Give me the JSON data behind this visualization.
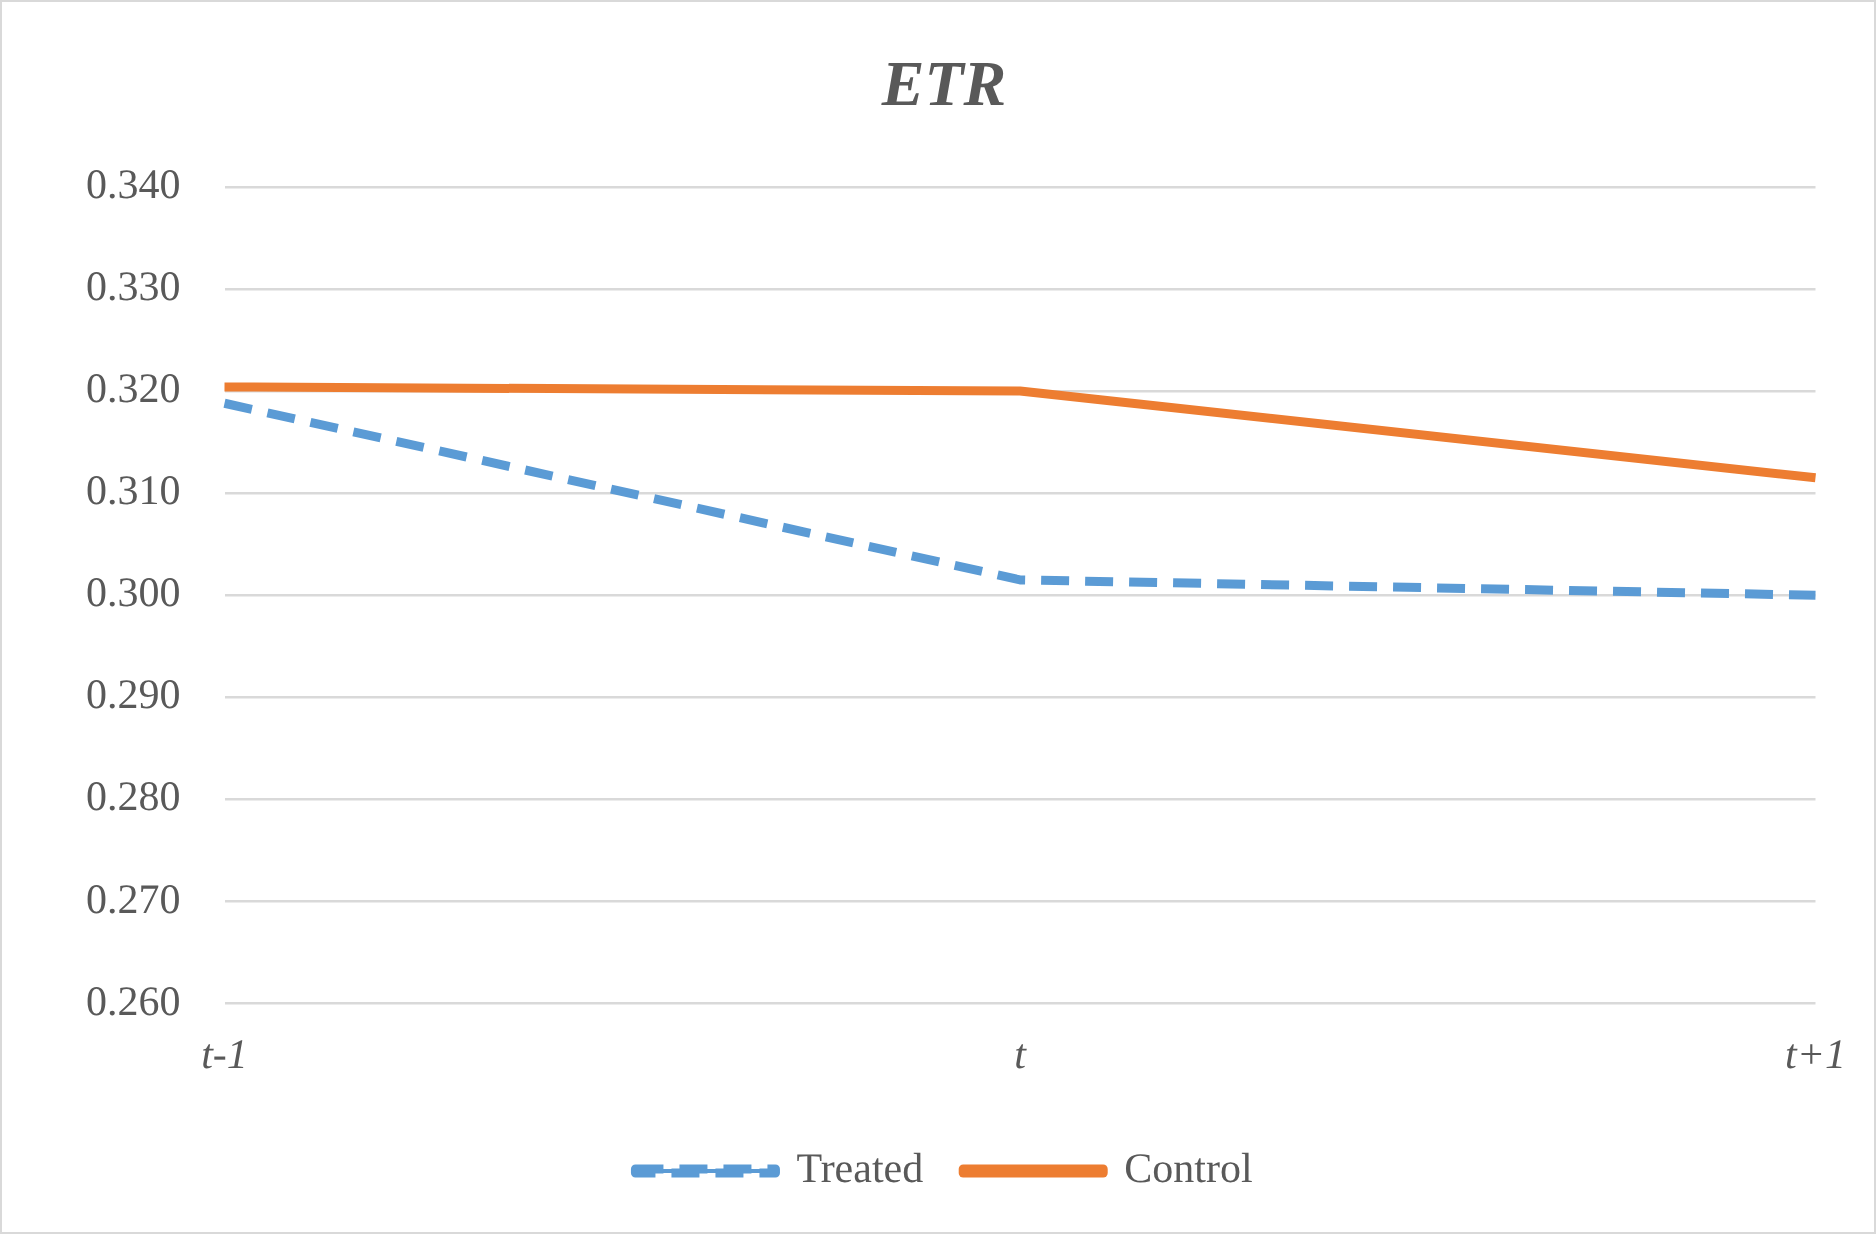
{
  "chart_data": {
    "type": "line",
    "title": "ETR",
    "categories": [
      "t-1",
      "t",
      "t+1"
    ],
    "series": [
      {
        "name": "Treated",
        "color": "#5b9bd5",
        "line_style": "dashed",
        "values": [
          0.3188,
          0.3015,
          0.3
        ]
      },
      {
        "name": "Control",
        "color": "#ed7d31",
        "line_style": "solid",
        "values": [
          0.3204,
          0.32,
          0.3115
        ]
      }
    ],
    "ylim": [
      0.26,
      0.34
    ],
    "yticks": [
      {
        "value": 0.26,
        "label": "0.260"
      },
      {
        "value": 0.27,
        "label": "0.270"
      },
      {
        "value": 0.28,
        "label": "0.280"
      },
      {
        "value": 0.29,
        "label": "0.290"
      },
      {
        "value": 0.3,
        "label": "0.300"
      },
      {
        "value": 0.31,
        "label": "0.310"
      },
      {
        "value": 0.32,
        "label": "0.320"
      },
      {
        "value": 0.33,
        "label": "0.330"
      },
      {
        "value": 0.34,
        "label": "0.340"
      }
    ],
    "grid": "y",
    "legend": "bottom",
    "marker": "none"
  }
}
